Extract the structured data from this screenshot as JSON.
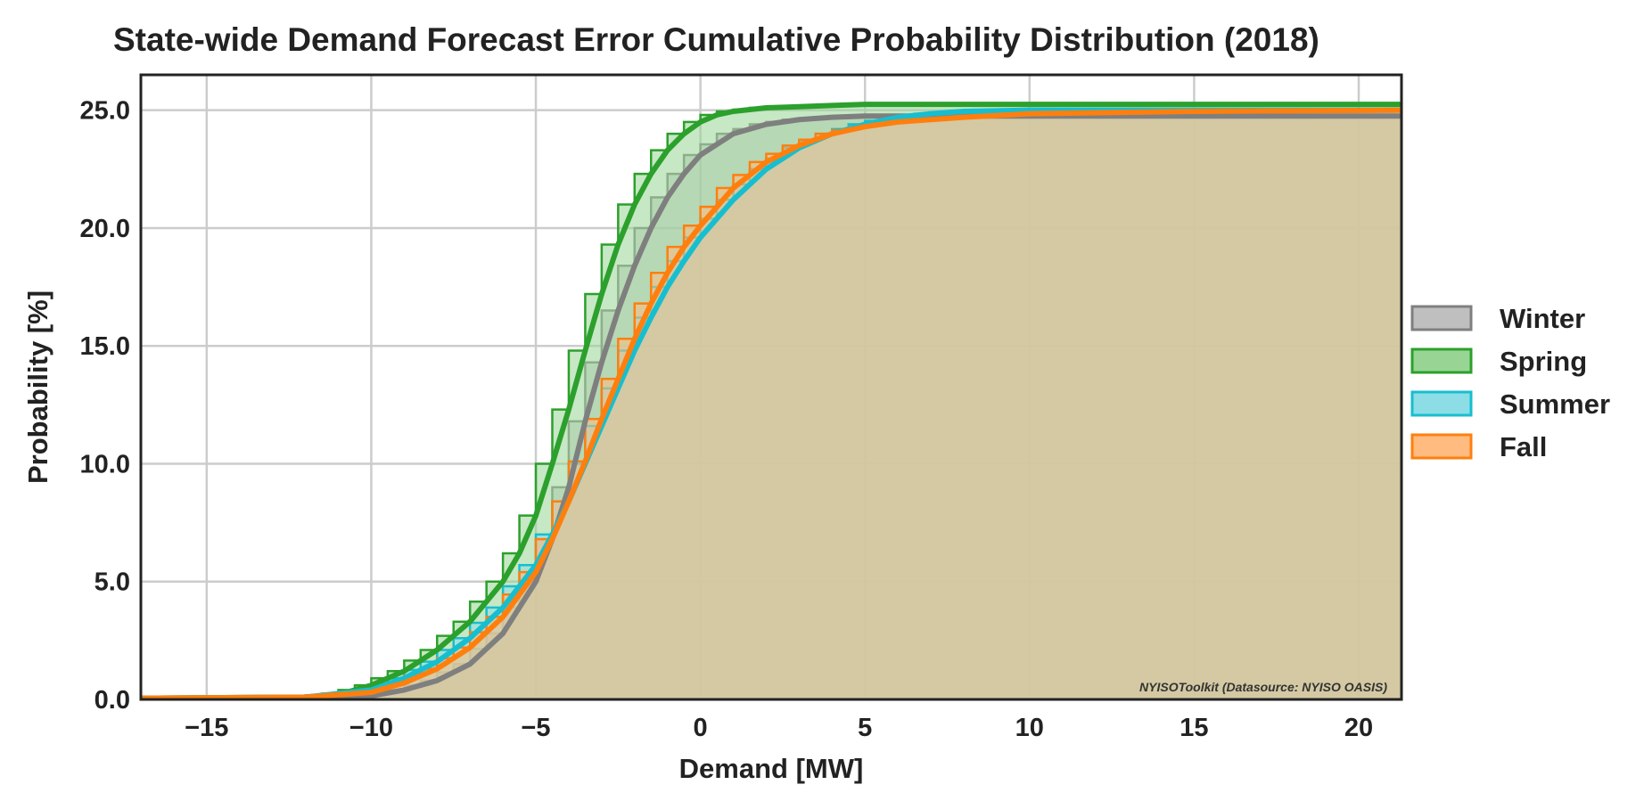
{
  "chart_data": {
    "type": "area",
    "title": "State-wide Demand Forecast Error Cumulative Probability Distribution (2018)",
    "xlabel": "Demand [MW]",
    "ylabel": "Probability [%]",
    "xlim": [
      -17,
      21.3
    ],
    "ylim": [
      0,
      26.5
    ],
    "x_ticks": [
      -15,
      -10,
      -5,
      0,
      5,
      10,
      15,
      20
    ],
    "x_tick_labels": [
      "−15",
      "−10",
      "−5",
      "0",
      "5",
      "10",
      "15",
      "20"
    ],
    "y_ticks": [
      0,
      5,
      10,
      15,
      20,
      25
    ],
    "y_tick_labels": [
      "0.0",
      "5.0",
      "10.0",
      "15.0",
      "20.0",
      "25.0"
    ],
    "grid": true,
    "legend_position": "right",
    "watermark": "NYISOToolkit (Datasource: NYISO OASIS)",
    "series": [
      {
        "name": "Winter",
        "color": "#7f7f7f",
        "fill": "#bfbfbf",
        "x": [
          -17,
          -12,
          -10,
          -9,
          -8,
          -7,
          -6,
          -5,
          -4.5,
          -4,
          -3.5,
          -3,
          -2.5,
          -2,
          -1.5,
          -1,
          -0.5,
          0,
          1,
          2,
          3,
          4,
          5,
          6,
          8,
          10,
          15,
          21.3
        ],
        "y": [
          0.05,
          0.05,
          0.15,
          0.4,
          0.8,
          1.5,
          2.8,
          5.0,
          6.8,
          9.0,
          11.8,
          14.3,
          16.5,
          18.4,
          20.0,
          21.3,
          22.3,
          23.1,
          24.0,
          24.4,
          24.6,
          24.7,
          24.75,
          24.75,
          24.75,
          24.75,
          24.75,
          24.75
        ]
      },
      {
        "name": "Spring",
        "color": "#2ca02c",
        "fill": "#98d594",
        "x": [
          -17,
          -12,
          -11,
          -10,
          -9,
          -8,
          -7,
          -6,
          -5.5,
          -5,
          -4.5,
          -4,
          -3.5,
          -3,
          -2.5,
          -2,
          -1.5,
          -1,
          -0.5,
          0,
          0.5,
          1,
          2,
          3,
          4,
          5,
          6,
          8,
          10,
          15,
          21.3
        ],
        "y": [
          0.05,
          0.1,
          0.2,
          0.6,
          1.2,
          2.1,
          3.3,
          5.0,
          6.2,
          7.8,
          10.0,
          12.3,
          14.8,
          17.2,
          19.3,
          21.0,
          22.3,
          23.3,
          24.0,
          24.5,
          24.8,
          24.95,
          25.1,
          25.15,
          25.2,
          25.25,
          25.25,
          25.25,
          25.25,
          25.25,
          25.25
        ]
      },
      {
        "name": "Summer",
        "color": "#17becf",
        "fill": "#8cdde6",
        "x": [
          -17,
          -12,
          -10,
          -9,
          -8,
          -7,
          -6,
          -5,
          -4.5,
          -4,
          -3.5,
          -3,
          -2.5,
          -2,
          -1.5,
          -1,
          -0.5,
          0,
          1,
          2,
          3,
          4,
          5,
          6,
          7,
          8,
          10,
          15,
          21.3
        ],
        "y": [
          0.05,
          0.1,
          0.4,
          0.9,
          1.6,
          2.6,
          3.9,
          5.7,
          7.0,
          8.4,
          10.0,
          11.6,
          13.2,
          14.8,
          16.2,
          17.5,
          18.6,
          19.6,
          21.2,
          22.5,
          23.4,
          24.0,
          24.4,
          24.7,
          24.85,
          24.95,
          25.0,
          25.0,
          25.0
        ]
      },
      {
        "name": "Fall",
        "color": "#ff7f0e",
        "fill": "#ffbb80",
        "x": [
          -17,
          -12,
          -10,
          -9,
          -8,
          -7,
          -6,
          -5,
          -4.5,
          -4,
          -3.5,
          -3,
          -2.5,
          -2,
          -1.5,
          -1,
          -0.5,
          0,
          1,
          2,
          3,
          4,
          5,
          6,
          8,
          10,
          15,
          21.3
        ],
        "y": [
          0.05,
          0.1,
          0.3,
          0.7,
          1.3,
          2.2,
          3.5,
          5.4,
          6.8,
          8.4,
          10.1,
          11.9,
          13.6,
          15.3,
          16.8,
          18.1,
          19.2,
          20.1,
          21.7,
          22.8,
          23.5,
          24.0,
          24.3,
          24.5,
          24.7,
          24.85,
          24.95,
          25.0
        ]
      }
    ]
  }
}
